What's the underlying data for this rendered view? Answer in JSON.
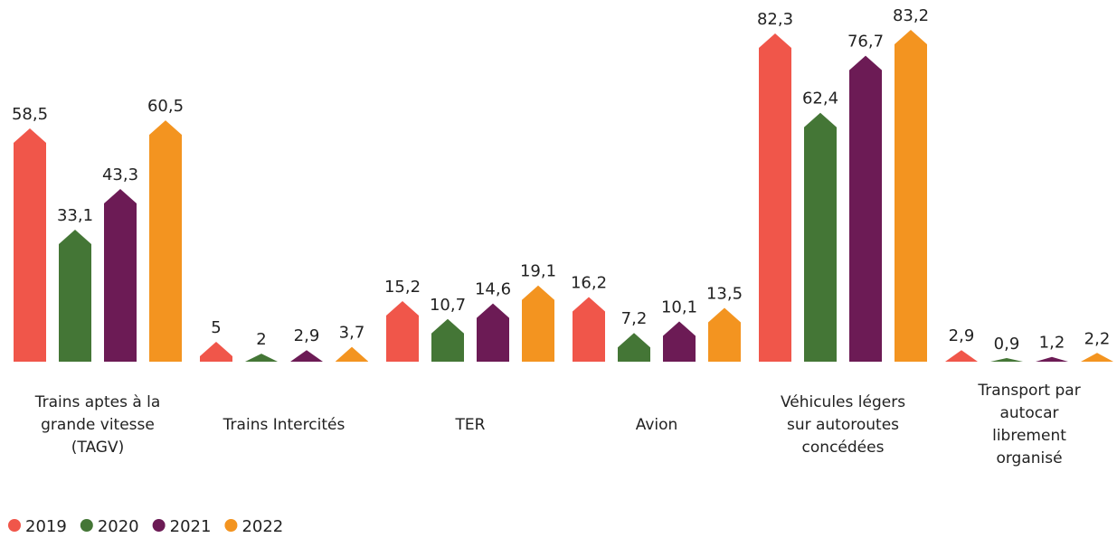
{
  "chart_data": {
    "type": "bar",
    "categories": [
      "Trains aptes à la grande vitesse (TAGV)",
      "Trains Intercités",
      "TER",
      "Avion",
      "Véhicules légers sur autoroutes concédées",
      "Transport par autocar librement organisé"
    ],
    "series": [
      {
        "name": "2019",
        "color": "#f0564a",
        "values": [
          58.5,
          5,
          15.2,
          16.2,
          82.3,
          2.9
        ],
        "value_labels": [
          "58,5",
          "5",
          "15,2",
          "16,2",
          "82,3",
          "2,9"
        ]
      },
      {
        "name": "2020",
        "color": "#447636",
        "values": [
          33.1,
          2,
          10.7,
          7.2,
          62.4,
          0.9
        ],
        "value_labels": [
          "33,1",
          "2",
          "10,7",
          "7,2",
          "62,4",
          "0,9"
        ]
      },
      {
        "name": "2021",
        "color": "#6c1b55",
        "values": [
          43.3,
          2.9,
          14.6,
          10.1,
          76.7,
          1.2
        ],
        "value_labels": [
          "43,3",
          "2,9",
          "14,6",
          "10,1",
          "76,7",
          "1,2"
        ]
      },
      {
        "name": "2022",
        "color": "#f39420",
        "values": [
          60.5,
          3.7,
          19.1,
          13.5,
          83.2,
          2.2
        ],
        "value_labels": [
          "60,5",
          "3,7",
          "19,1",
          "13,5",
          "83,2",
          "2,2"
        ]
      }
    ],
    "ylim": [
      0,
      90
    ],
    "legend": "bottom-left"
  }
}
